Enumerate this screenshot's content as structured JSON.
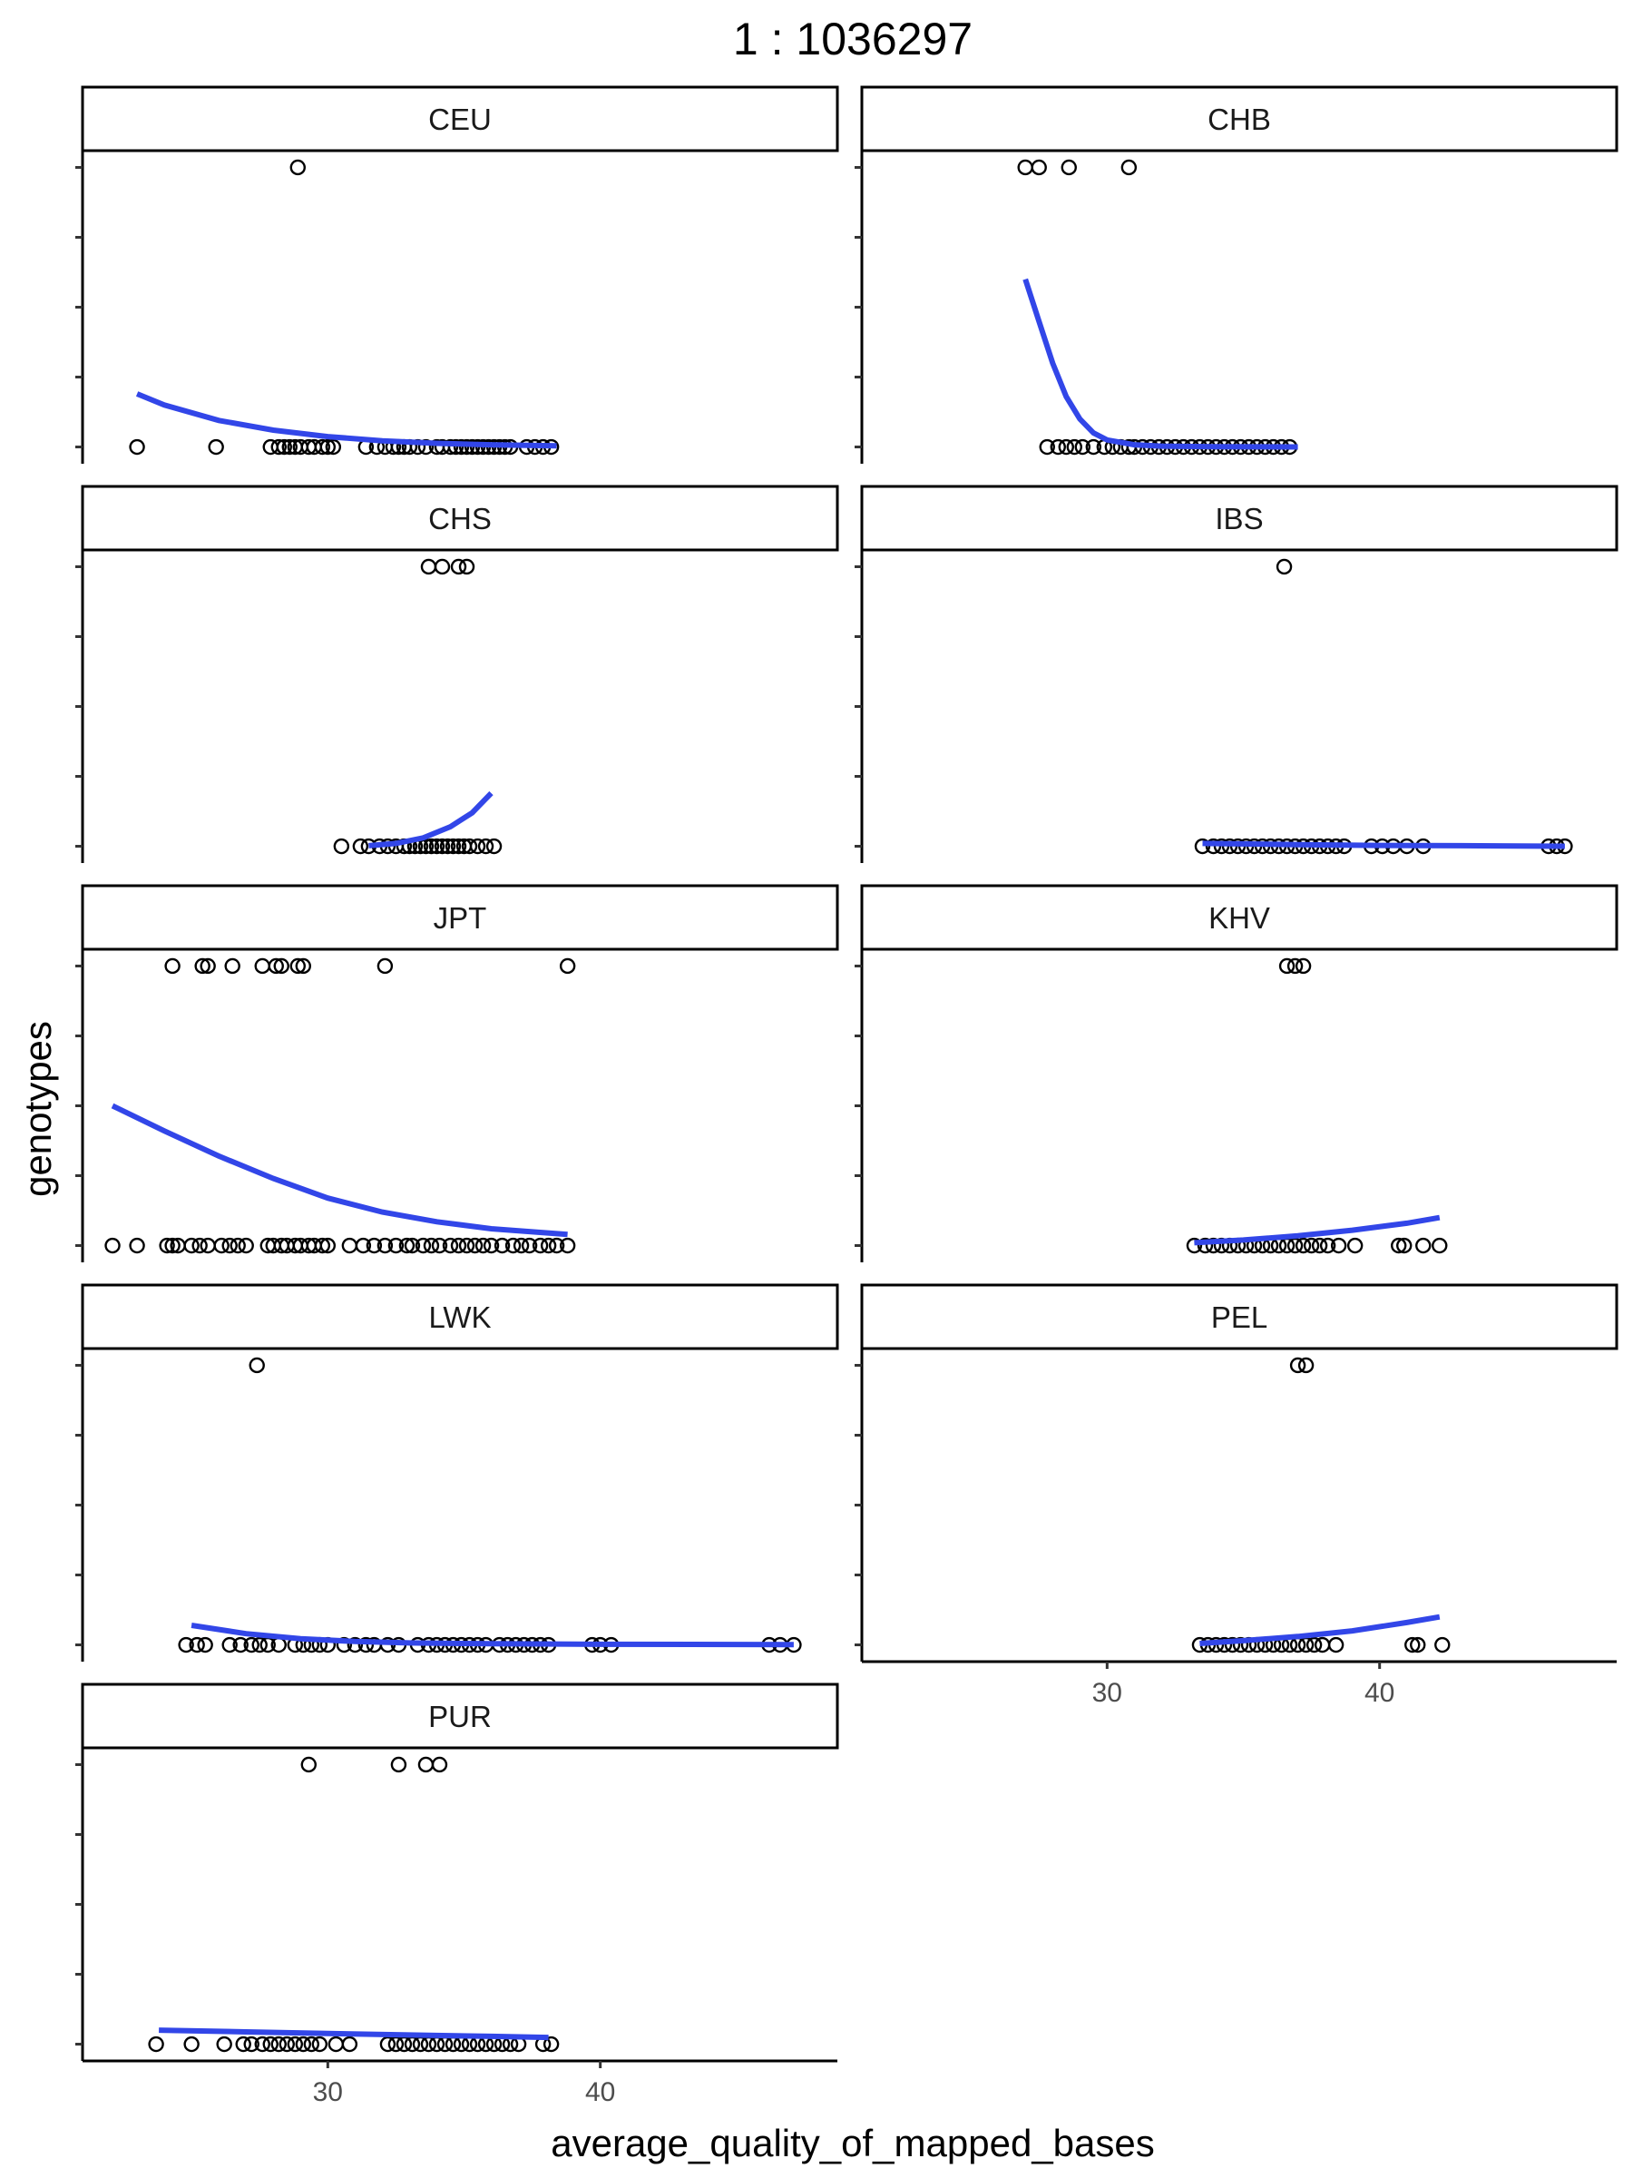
{
  "chart_data": {
    "type": "scatter",
    "title": "1 : 1036297",
    "xlabel": "average_quality_of_mapped_bases",
    "ylabel": "genotypes",
    "xlim": [
      21.0,
      48.7
    ],
    "ylim": [
      -0.06,
      1.06
    ],
    "x_ticks": [
      30,
      40
    ],
    "y_tick_count": 5,
    "fit_color": "#3246E8",
    "point_style": "open circle",
    "grid": false,
    "panels": [
      {
        "name": "CEU",
        "points_top": [
          28.9
        ],
        "points_bottom": [
          23.0,
          25.9,
          27.9,
          28.2,
          28.4,
          28.6,
          28.8,
          29.0,
          29.3,
          29.5,
          29.8,
          30.0,
          30.2,
          31.4,
          31.8,
          32.1,
          32.4,
          32.6,
          32.8,
          33.0,
          33.3,
          33.6,
          34.0,
          34.2,
          34.5,
          34.7,
          34.9,
          35.1,
          35.3,
          35.5,
          35.7,
          35.9,
          36.1,
          36.3,
          36.5,
          36.7,
          37.3,
          37.6,
          37.9,
          38.2
        ],
        "fit": [
          [
            23.0,
            0.19
          ],
          [
            24.0,
            0.15
          ],
          [
            26.0,
            0.095
          ],
          [
            28.0,
            0.06
          ],
          [
            30.0,
            0.037
          ],
          [
            32.0,
            0.022
          ],
          [
            34.0,
            0.013
          ],
          [
            36.0,
            0.008
          ],
          [
            38.4,
            0.004
          ]
        ]
      },
      {
        "name": "CHB",
        "points_top": [
          27.0,
          27.5,
          28.6,
          30.8
        ],
        "points_bottom": [
          27.8,
          28.2,
          28.5,
          28.8,
          29.1,
          29.5,
          29.9,
          30.2,
          30.5,
          30.8,
          31.0,
          31.3,
          31.6,
          31.9,
          32.2,
          32.5,
          32.8,
          33.1,
          33.4,
          33.7,
          34.0,
          34.3,
          34.6,
          34.9,
          35.2,
          35.5,
          35.8,
          36.1,
          36.4,
          36.7
        ],
        "fit": [
          [
            27.0,
            0.6
          ],
          [
            27.5,
            0.45
          ],
          [
            28.0,
            0.3
          ],
          [
            28.5,
            0.18
          ],
          [
            29.0,
            0.1
          ],
          [
            29.5,
            0.05
          ],
          [
            30.0,
            0.025
          ],
          [
            31.0,
            0.008
          ],
          [
            32.0,
            0.003
          ],
          [
            34.0,
            0.001
          ],
          [
            37.0,
            0.0
          ]
        ]
      },
      {
        "name": "CHS",
        "points_top": [
          33.7,
          34.2,
          34.8,
          35.1
        ],
        "points_bottom": [
          30.5,
          31.2,
          31.5,
          31.9,
          32.2,
          32.5,
          32.8,
          33.0,
          33.2,
          33.4,
          33.6,
          33.8,
          34.0,
          34.2,
          34.4,
          34.6,
          34.8,
          35.0,
          35.2,
          35.5,
          35.8,
          36.1
        ],
        "fit": [
          [
            31.5,
            0.002
          ],
          [
            32.5,
            0.01
          ],
          [
            33.5,
            0.03
          ],
          [
            34.5,
            0.07
          ],
          [
            35.3,
            0.12
          ],
          [
            36.0,
            0.19
          ]
        ]
      },
      {
        "name": "IBS",
        "points_top": [
          36.5
        ],
        "points_bottom": [
          33.5,
          33.9,
          34.2,
          34.5,
          34.8,
          35.1,
          35.4,
          35.7,
          36.0,
          36.3,
          36.6,
          36.9,
          37.2,
          37.5,
          37.8,
          38.1,
          38.4,
          38.7,
          39.7,
          40.1,
          40.5,
          41.0,
          41.6,
          46.2,
          46.5,
          46.8
        ],
        "fit": [
          [
            33.5,
            0.01
          ],
          [
            37.0,
            0.006
          ],
          [
            40.0,
            0.003
          ],
          [
            43.0,
            0.002
          ],
          [
            46.8,
            0.0
          ]
        ]
      },
      {
        "name": "JPT",
        "points_top": [
          24.3,
          25.4,
          25.6,
          26.5,
          27.6,
          28.1,
          28.3,
          28.9,
          29.1,
          32.1,
          38.8
        ],
        "points_bottom": [
          22.1,
          23.0,
          24.1,
          24.3,
          24.5,
          25.0,
          25.3,
          25.6,
          26.1,
          26.4,
          26.7,
          27.0,
          27.8,
          28.0,
          28.3,
          28.5,
          28.8,
          29.0,
          29.3,
          29.5,
          29.8,
          30.0,
          30.8,
          31.3,
          31.7,
          32.1,
          32.5,
          32.9,
          33.1,
          33.5,
          33.8,
          34.1,
          34.5,
          34.8,
          35.1,
          35.4,
          35.7,
          36.0,
          36.4,
          36.8,
          37.1,
          37.4,
          37.8,
          38.1,
          38.4,
          38.8
        ],
        "fit": [
          [
            22.1,
            0.5
          ],
          [
            24.0,
            0.41
          ],
          [
            26.0,
            0.32
          ],
          [
            28.0,
            0.24
          ],
          [
            30.0,
            0.17
          ],
          [
            32.0,
            0.12
          ],
          [
            34.0,
            0.085
          ],
          [
            36.0,
            0.06
          ],
          [
            38.8,
            0.04
          ]
        ]
      },
      {
        "name": "KHV",
        "points_top": [
          36.6,
          36.9,
          37.2
        ],
        "points_bottom": [
          33.2,
          33.6,
          33.9,
          34.2,
          34.5,
          34.8,
          35.1,
          35.4,
          35.7,
          36.0,
          36.3,
          36.6,
          36.9,
          37.2,
          37.5,
          37.8,
          38.1,
          38.5,
          39.1,
          40.7,
          40.9,
          41.6,
          42.2
        ],
        "fit": [
          [
            33.2,
            0.01
          ],
          [
            35.0,
            0.02
          ],
          [
            37.0,
            0.035
          ],
          [
            39.0,
            0.055
          ],
          [
            41.0,
            0.08
          ],
          [
            42.2,
            0.1
          ]
        ]
      },
      {
        "name": "LWK",
        "points_top": [
          27.4
        ],
        "points_bottom": [
          24.8,
          25.2,
          25.5,
          26.4,
          26.8,
          27.2,
          27.5,
          27.8,
          28.2,
          28.8,
          29.1,
          29.4,
          29.7,
          30.0,
          30.6,
          31.0,
          31.4,
          31.7,
          32.2,
          32.6,
          33.3,
          33.7,
          34.0,
          34.3,
          34.6,
          34.9,
          35.2,
          35.5,
          35.8,
          36.3,
          36.6,
          36.9,
          37.2,
          37.5,
          37.8,
          38.1,
          39.7,
          40.0,
          40.4,
          46.2,
          46.6,
          47.1
        ],
        "fit": [
          [
            25.0,
            0.07
          ],
          [
            27.0,
            0.04
          ],
          [
            29.0,
            0.022
          ],
          [
            31.0,
            0.012
          ],
          [
            33.0,
            0.007
          ],
          [
            36.0,
            0.004
          ],
          [
            40.0,
            0.002
          ],
          [
            47.1,
            0.001
          ]
        ]
      },
      {
        "name": "PEL",
        "points_top": [
          37.0,
          37.3
        ],
        "points_bottom": [
          33.4,
          33.7,
          34.0,
          34.3,
          34.6,
          34.9,
          35.2,
          35.5,
          35.8,
          36.1,
          36.4,
          36.7,
          37.0,
          37.3,
          37.6,
          37.9,
          38.4,
          41.2,
          41.4,
          42.3
        ],
        "fit": [
          [
            33.4,
            0.005
          ],
          [
            35.0,
            0.015
          ],
          [
            37.0,
            0.03
          ],
          [
            39.0,
            0.05
          ],
          [
            41.0,
            0.08
          ],
          [
            42.2,
            0.1
          ]
        ]
      },
      {
        "name": "PUR",
        "points_top": [
          29.3,
          32.6,
          33.6,
          34.1
        ],
        "points_bottom": [
          23.7,
          25.0,
          26.2,
          26.9,
          27.2,
          27.6,
          27.9,
          28.2,
          28.5,
          28.8,
          29.1,
          29.4,
          29.7,
          30.3,
          30.8,
          32.2,
          32.5,
          32.8,
          33.1,
          33.4,
          33.7,
          34.0,
          34.3,
          34.6,
          34.9,
          35.2,
          35.5,
          35.8,
          36.1,
          36.4,
          36.7,
          37.0,
          37.9,
          38.2
        ],
        "fit": [
          [
            23.8,
            0.05
          ],
          [
            27.0,
            0.044
          ],
          [
            30.0,
            0.038
          ],
          [
            33.0,
            0.033
          ],
          [
            36.0,
            0.028
          ],
          [
            38.1,
            0.024
          ]
        ]
      }
    ]
  }
}
